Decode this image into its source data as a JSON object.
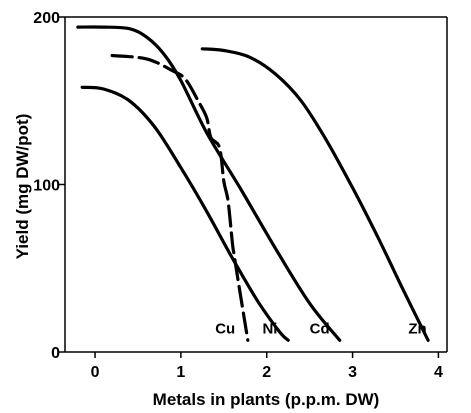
{
  "chart_data": {
    "type": "line",
    "title": "",
    "xlabel": "Metals in plants (p.p.m. DW)",
    "ylabel": "Yield (mg DW/pot)",
    "xlim": [
      -0.35,
      4.1
    ],
    "ylim": [
      0,
      200
    ],
    "xticks": [
      0,
      1,
      2,
      3,
      4
    ],
    "yticks": [
      0,
      100,
      200
    ],
    "grid": false,
    "legend": "none",
    "series": [
      {
        "name": "Cu",
        "style": "dashed",
        "x": [
          0.2,
          0.6,
          0.9,
          1.05,
          1.2,
          1.3,
          1.35,
          1.45,
          1.5,
          1.55,
          1.6,
          1.62,
          1.7,
          1.78
        ],
        "y": [
          177,
          175,
          168,
          163,
          150,
          140,
          128,
          122,
          102,
          90,
          65,
          58,
          32,
          7
        ]
      },
      {
        "name": "Ni",
        "style": "solid",
        "x": [
          -0.15,
          0.1,
          0.4,
          0.7,
          1.0,
          1.3,
          1.6,
          1.9,
          2.15,
          2.25
        ],
        "y": [
          158,
          157,
          150,
          134,
          110,
          84,
          56,
          30,
          12,
          7
        ]
      },
      {
        "name": "Cd",
        "style": "solid",
        "x": [
          -0.2,
          0.1,
          0.4,
          0.6,
          0.8,
          1.0,
          1.3,
          1.7,
          2.1,
          2.5,
          2.85
        ],
        "y": [
          194,
          194,
          193,
          188,
          178,
          162,
          131,
          97,
          62,
          29,
          7
        ]
      },
      {
        "name": "Zn",
        "style": "solid",
        "x": [
          1.25,
          1.5,
          1.8,
          2.1,
          2.4,
          2.7,
          3.0,
          3.3,
          3.6,
          3.88
        ],
        "y": [
          181,
          180,
          176,
          166,
          150,
          126,
          98,
          68,
          36,
          7
        ]
      }
    ],
    "series_labels": [
      {
        "text": "Cu",
        "x": 1.4,
        "y": 10
      },
      {
        "text": "Ni",
        "x": 1.95,
        "y": 10
      },
      {
        "text": "Cd",
        "x": 2.5,
        "y": 10
      },
      {
        "text": "Zn",
        "x": 3.65,
        "y": 10
      }
    ]
  }
}
